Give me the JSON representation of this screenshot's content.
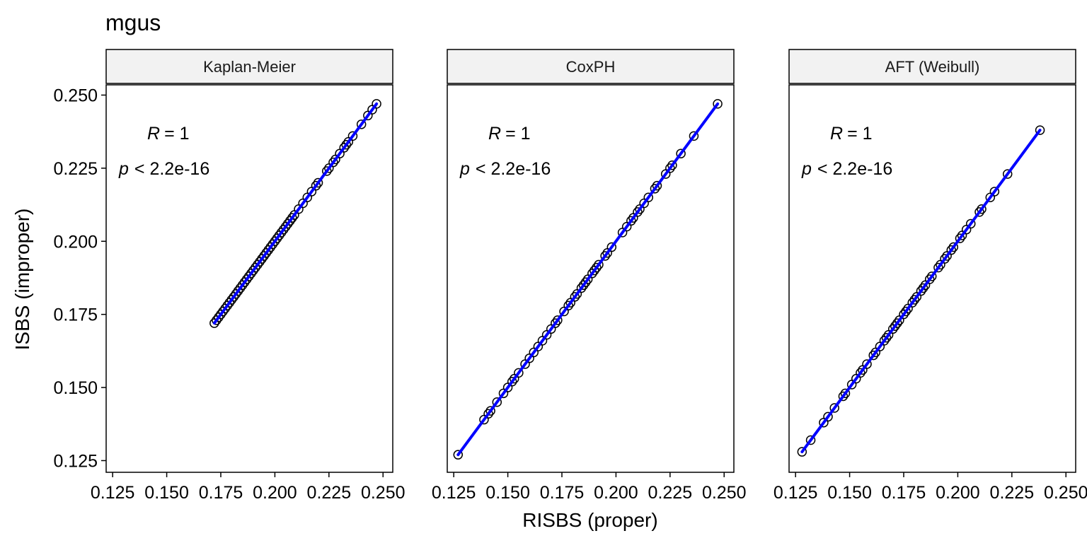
{
  "title": "mgus",
  "xlabel": "RISBS (proper)",
  "ylabel": "ISBS (improper)",
  "colors": {
    "fit_line": "#0000ff",
    "point_stroke": "#000000",
    "strip_bg": "#f2f2f2"
  },
  "chart_data": {
    "type": "scatter",
    "title": "mgus",
    "xlabel": "RISBS (proper)",
    "ylabel": "ISBS (improper)",
    "xlim": [
      0.122,
      0.2545
    ],
    "ylim": [
      0.121,
      0.2535
    ],
    "xticks": [
      0.125,
      0.15,
      0.175,
      0.2,
      0.225,
      0.25
    ],
    "xtick_labels": [
      "0.125",
      "0.150",
      "0.175",
      "0.200",
      "0.225",
      "0.250"
    ],
    "yticks": [
      0.125,
      0.15,
      0.175,
      0.2,
      0.225,
      0.25
    ],
    "ytick_labels": [
      "0.125",
      "0.150",
      "0.175",
      "0.200",
      "0.225",
      "0.250"
    ],
    "grid": false,
    "panels": [
      {
        "name": "Kaplan-Meier",
        "r_label": "= 1",
        "p_label": "< 2.2e-16",
        "fit_line": {
          "x": [
            0.172,
            0.247
          ],
          "y": [
            0.172,
            0.247
          ]
        },
        "points": {
          "x": [
            0.172,
            0.173,
            0.174,
            0.175,
            0.176,
            0.177,
            0.178,
            0.179,
            0.18,
            0.181,
            0.182,
            0.183,
            0.184,
            0.185,
            0.186,
            0.187,
            0.188,
            0.189,
            0.19,
            0.191,
            0.192,
            0.193,
            0.194,
            0.195,
            0.196,
            0.197,
            0.198,
            0.199,
            0.2,
            0.201,
            0.202,
            0.203,
            0.204,
            0.205,
            0.206,
            0.207,
            0.208,
            0.209,
            0.211,
            0.213,
            0.215,
            0.217,
            0.219,
            0.22,
            0.224,
            0.225,
            0.227,
            0.228,
            0.23,
            0.232,
            0.233,
            0.234,
            0.236,
            0.24,
            0.243,
            0.245,
            0.247
          ],
          "y": [
            0.172,
            0.173,
            0.174,
            0.175,
            0.176,
            0.177,
            0.178,
            0.179,
            0.18,
            0.181,
            0.182,
            0.183,
            0.184,
            0.185,
            0.186,
            0.187,
            0.188,
            0.189,
            0.19,
            0.191,
            0.192,
            0.193,
            0.194,
            0.195,
            0.196,
            0.197,
            0.198,
            0.199,
            0.2,
            0.201,
            0.202,
            0.203,
            0.204,
            0.205,
            0.206,
            0.207,
            0.208,
            0.209,
            0.211,
            0.213,
            0.215,
            0.217,
            0.219,
            0.22,
            0.224,
            0.225,
            0.227,
            0.228,
            0.23,
            0.232,
            0.233,
            0.234,
            0.236,
            0.24,
            0.243,
            0.245,
            0.247
          ]
        }
      },
      {
        "name": "CoxPH",
        "r_label": "= 1",
        "p_label": "< 2.2e-16",
        "fit_line": {
          "x": [
            0.127,
            0.247
          ],
          "y": [
            0.127,
            0.247
          ]
        },
        "points": {
          "x": [
            0.127,
            0.139,
            0.141,
            0.142,
            0.145,
            0.148,
            0.15,
            0.152,
            0.153,
            0.155,
            0.158,
            0.16,
            0.162,
            0.164,
            0.166,
            0.168,
            0.17,
            0.172,
            0.173,
            0.176,
            0.178,
            0.179,
            0.181,
            0.182,
            0.184,
            0.185,
            0.186,
            0.187,
            0.189,
            0.19,
            0.191,
            0.192,
            0.195,
            0.196,
            0.198,
            0.203,
            0.205,
            0.207,
            0.208,
            0.21,
            0.211,
            0.213,
            0.215,
            0.218,
            0.219,
            0.223,
            0.225,
            0.226,
            0.23,
            0.236,
            0.247
          ],
          "y": [
            0.127,
            0.139,
            0.141,
            0.142,
            0.145,
            0.148,
            0.15,
            0.152,
            0.153,
            0.155,
            0.158,
            0.16,
            0.162,
            0.164,
            0.166,
            0.168,
            0.17,
            0.172,
            0.173,
            0.176,
            0.178,
            0.179,
            0.181,
            0.182,
            0.184,
            0.185,
            0.186,
            0.187,
            0.189,
            0.19,
            0.191,
            0.192,
            0.195,
            0.196,
            0.198,
            0.203,
            0.205,
            0.207,
            0.208,
            0.21,
            0.211,
            0.213,
            0.215,
            0.218,
            0.219,
            0.223,
            0.225,
            0.226,
            0.23,
            0.236,
            0.247
          ]
        }
      },
      {
        "name": "AFT (Weibull)",
        "r_label": "= 1",
        "p_label": "< 2.2e-16",
        "fit_line": {
          "x": [
            0.128,
            0.238
          ],
          "y": [
            0.128,
            0.238
          ]
        },
        "points": {
          "x": [
            0.128,
            0.132,
            0.138,
            0.14,
            0.143,
            0.147,
            0.148,
            0.151,
            0.153,
            0.155,
            0.156,
            0.158,
            0.161,
            0.162,
            0.164,
            0.166,
            0.167,
            0.168,
            0.17,
            0.171,
            0.172,
            0.173,
            0.175,
            0.176,
            0.177,
            0.179,
            0.18,
            0.181,
            0.183,
            0.184,
            0.185,
            0.187,
            0.188,
            0.191,
            0.192,
            0.194,
            0.195,
            0.197,
            0.198,
            0.201,
            0.202,
            0.204,
            0.206,
            0.21,
            0.211,
            0.215,
            0.217,
            0.223,
            0.238
          ],
          "y": [
            0.128,
            0.132,
            0.138,
            0.14,
            0.143,
            0.147,
            0.148,
            0.151,
            0.153,
            0.155,
            0.156,
            0.158,
            0.161,
            0.162,
            0.164,
            0.166,
            0.167,
            0.168,
            0.17,
            0.171,
            0.172,
            0.173,
            0.175,
            0.176,
            0.177,
            0.179,
            0.18,
            0.181,
            0.183,
            0.184,
            0.185,
            0.187,
            0.188,
            0.191,
            0.192,
            0.194,
            0.195,
            0.197,
            0.198,
            0.201,
            0.202,
            0.204,
            0.206,
            0.21,
            0.211,
            0.215,
            0.217,
            0.223,
            0.238
          ]
        }
      }
    ]
  }
}
